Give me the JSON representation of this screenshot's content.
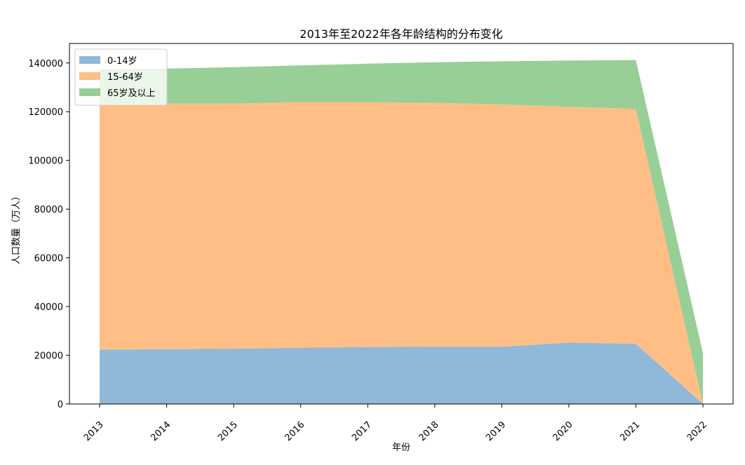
{
  "chart_data": {
    "type": "area",
    "stacked": true,
    "title": "2013年至2022年各年龄结构的分布变化",
    "xlabel": "年份",
    "ylabel": "人口数量（万人）",
    "x": [
      2013,
      2014,
      2015,
      2016,
      2017,
      2018,
      2019,
      2020,
      2021,
      2022
    ],
    "x_tick_labels": [
      "2013",
      "2014",
      "2015",
      "2016",
      "2017",
      "2018",
      "2019",
      "2020",
      "2021",
      "2022"
    ],
    "ylim": [
      0,
      148000
    ],
    "y_ticks": [
      0,
      20000,
      40000,
      60000,
      80000,
      100000,
      120000,
      140000
    ],
    "y_tick_labels": [
      "0",
      "20000",
      "40000",
      "60000",
      "80000",
      "100000",
      "120000",
      "140000"
    ],
    "grid": false,
    "legend_position": "upper-left",
    "series": [
      {
        "name": "0-14岁",
        "color": "#8fb8d9",
        "values": [
          22300,
          22500,
          22700,
          23100,
          23400,
          23500,
          23500,
          25200,
          24700,
          0
        ]
      },
      {
        "name": "15-64岁",
        "color": "#ffbe86",
        "values": [
          100900,
          100800,
          100600,
          100900,
          100500,
          100100,
          99500,
          96800,
          96500,
          0
        ]
      },
      {
        "name": "65岁及以上",
        "color": "#97cf97",
        "values": [
          14200,
          14400,
          15000,
          15000,
          15800,
          16700,
          17700,
          19000,
          20000,
          21000
        ]
      }
    ]
  }
}
